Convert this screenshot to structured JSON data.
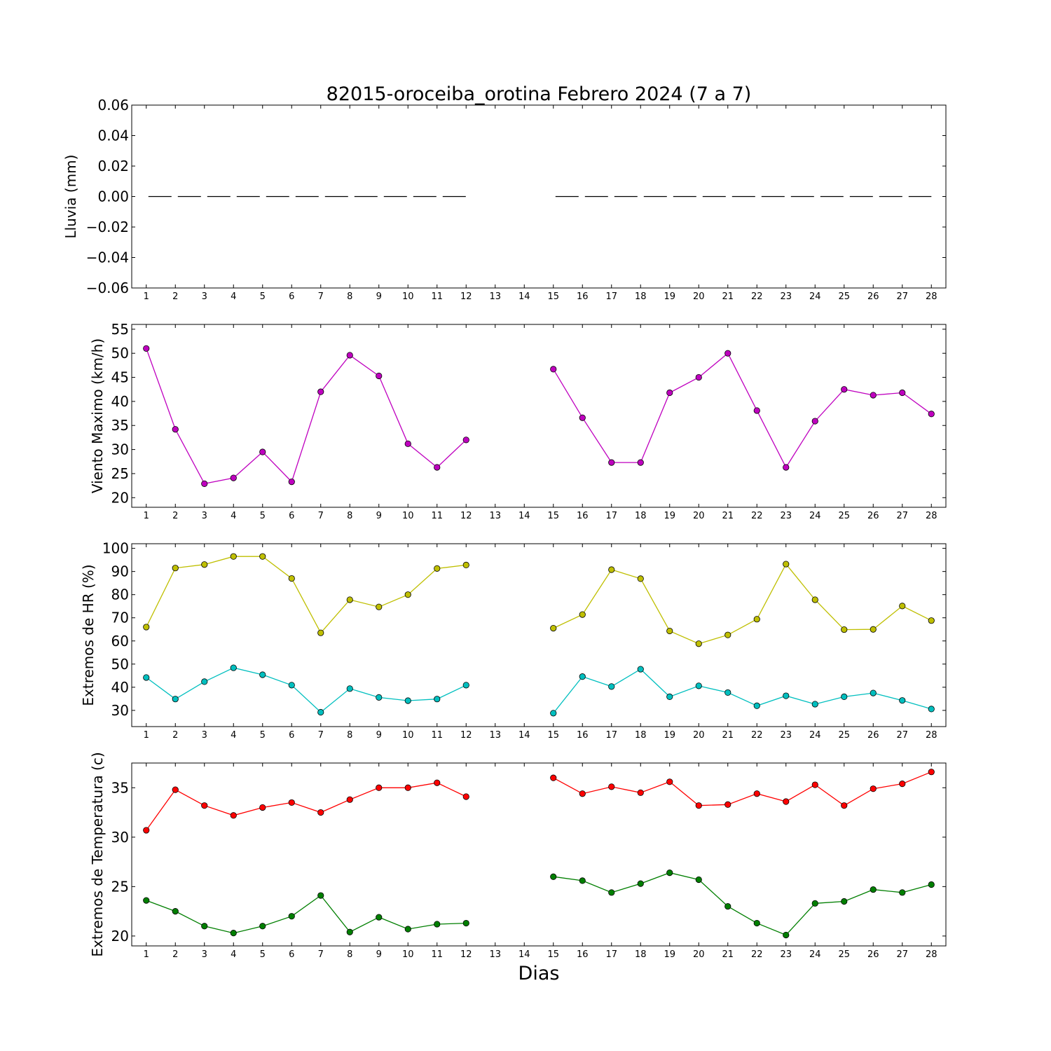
{
  "chart_data": {
    "title": "82015-oroceiba_orotina Febrero 2024  (7 a 7)",
    "xlabel": "Dias",
    "days": [
      1,
      2,
      3,
      4,
      5,
      6,
      7,
      8,
      9,
      10,
      11,
      12,
      13,
      14,
      15,
      16,
      17,
      18,
      19,
      20,
      21,
      22,
      23,
      24,
      25,
      26,
      27,
      28
    ],
    "xlim": [
      0.5,
      28.5
    ],
    "panels": [
      {
        "type": "line",
        "ylabel": "Lluvia (mm)",
        "ylim": [
          -0.06,
          0.06
        ],
        "yticks": [
          0.06,
          0.04,
          0.02,
          0.0,
          -0.02,
          -0.04,
          -0.06
        ],
        "ytick_labels": [
          "0.06",
          "0.04",
          "0.02",
          "0.00",
          "−0.02",
          "−0.04",
          "−0.06"
        ],
        "series": [
          {
            "color": "#000000",
            "style": "dashed",
            "values": [
              0,
              0,
              0,
              0,
              0,
              0,
              0,
              0,
              0,
              0,
              0,
              0,
              null,
              null,
              0,
              0,
              0,
              0,
              0,
              0,
              0,
              0,
              0,
              0,
              0,
              0,
              0,
              0
            ]
          }
        ]
      },
      {
        "type": "line",
        "ylabel": "Viento Maximo (km/h)",
        "ylim": [
          18,
          56
        ],
        "yticks": [
          20,
          25,
          30,
          35,
          40,
          45,
          50,
          55
        ],
        "ytick_labels": [
          "20",
          "25",
          "30",
          "35",
          "40",
          "45",
          "50",
          "55"
        ],
        "series": [
          {
            "color": "#bf00bf",
            "values": [
              51.0,
              34.2,
              22.9,
              24.1,
              29.5,
              23.3,
              42.0,
              49.6,
              45.3,
              31.2,
              26.3,
              32.0,
              null,
              null,
              46.7,
              36.6,
              27.3,
              27.3,
              41.8,
              45.0,
              50.0,
              38.1,
              26.3,
              35.9,
              42.5,
              41.3,
              41.8,
              37.4
            ]
          }
        ]
      },
      {
        "type": "line",
        "ylabel": "Extremos de HR (%)",
        "ylim": [
          23,
          102
        ],
        "yticks": [
          30,
          40,
          50,
          60,
          70,
          80,
          90,
          100
        ],
        "ytick_labels": [
          "30",
          "40",
          "50",
          "60",
          "70",
          "80",
          "90",
          "100"
        ],
        "series": [
          {
            "color": "#bfbf00",
            "values": [
              66,
              91.5,
              93,
              96.5,
              96.5,
              87,
              63.5,
              77.8,
              74.7,
              80,
              91.3,
              92.8,
              null,
              null,
              65.5,
              71.4,
              90.8,
              86.9,
              64.3,
              58.8,
              62.6,
              69.4,
              93.2,
              77.8,
              64.9,
              65,
              75.1,
              68.8
            ]
          },
          {
            "color": "#00bfbf",
            "values": [
              44.2,
              34.9,
              42.4,
              48.4,
              45.4,
              40.9,
              29.2,
              39.4,
              35.6,
              34.2,
              34.9,
              40.9,
              null,
              null,
              28.8,
              44.6,
              40.3,
              47.8,
              35.9,
              40.6,
              37.7,
              32,
              36.3,
              32.7,
              35.9,
              37.5,
              34.3,
              30.6
            ]
          }
        ]
      },
      {
        "type": "line",
        "ylabel": "Extremos de Temperatura (c)",
        "ylim": [
          19,
          37.5
        ],
        "yticks": [
          20,
          25,
          30,
          35
        ],
        "ytick_labels": [
          "20",
          "25",
          "30",
          "35"
        ],
        "series": [
          {
            "color": "#ff0000",
            "values": [
              30.7,
              34.8,
              33.2,
              32.2,
              33.0,
              33.5,
              32.5,
              33.8,
              35.0,
              35.0,
              35.5,
              34.1,
              null,
              null,
              36.0,
              34.4,
              35.1,
              34.5,
              35.6,
              33.2,
              33.3,
              34.4,
              33.6,
              35.3,
              33.2,
              34.9,
              35.4,
              36.6
            ]
          },
          {
            "color": "#007f00",
            "values": [
              23.6,
              22.5,
              21.0,
              20.3,
              21.0,
              22.0,
              24.1,
              20.4,
              21.9,
              20.7,
              21.2,
              21.3,
              null,
              null,
              26.0,
              25.6,
              24.4,
              25.3,
              26.4,
              25.7,
              23.0,
              21.3,
              20.1,
              23.3,
              23.5,
              24.7,
              24.4,
              25.2
            ]
          }
        ]
      }
    ]
  }
}
